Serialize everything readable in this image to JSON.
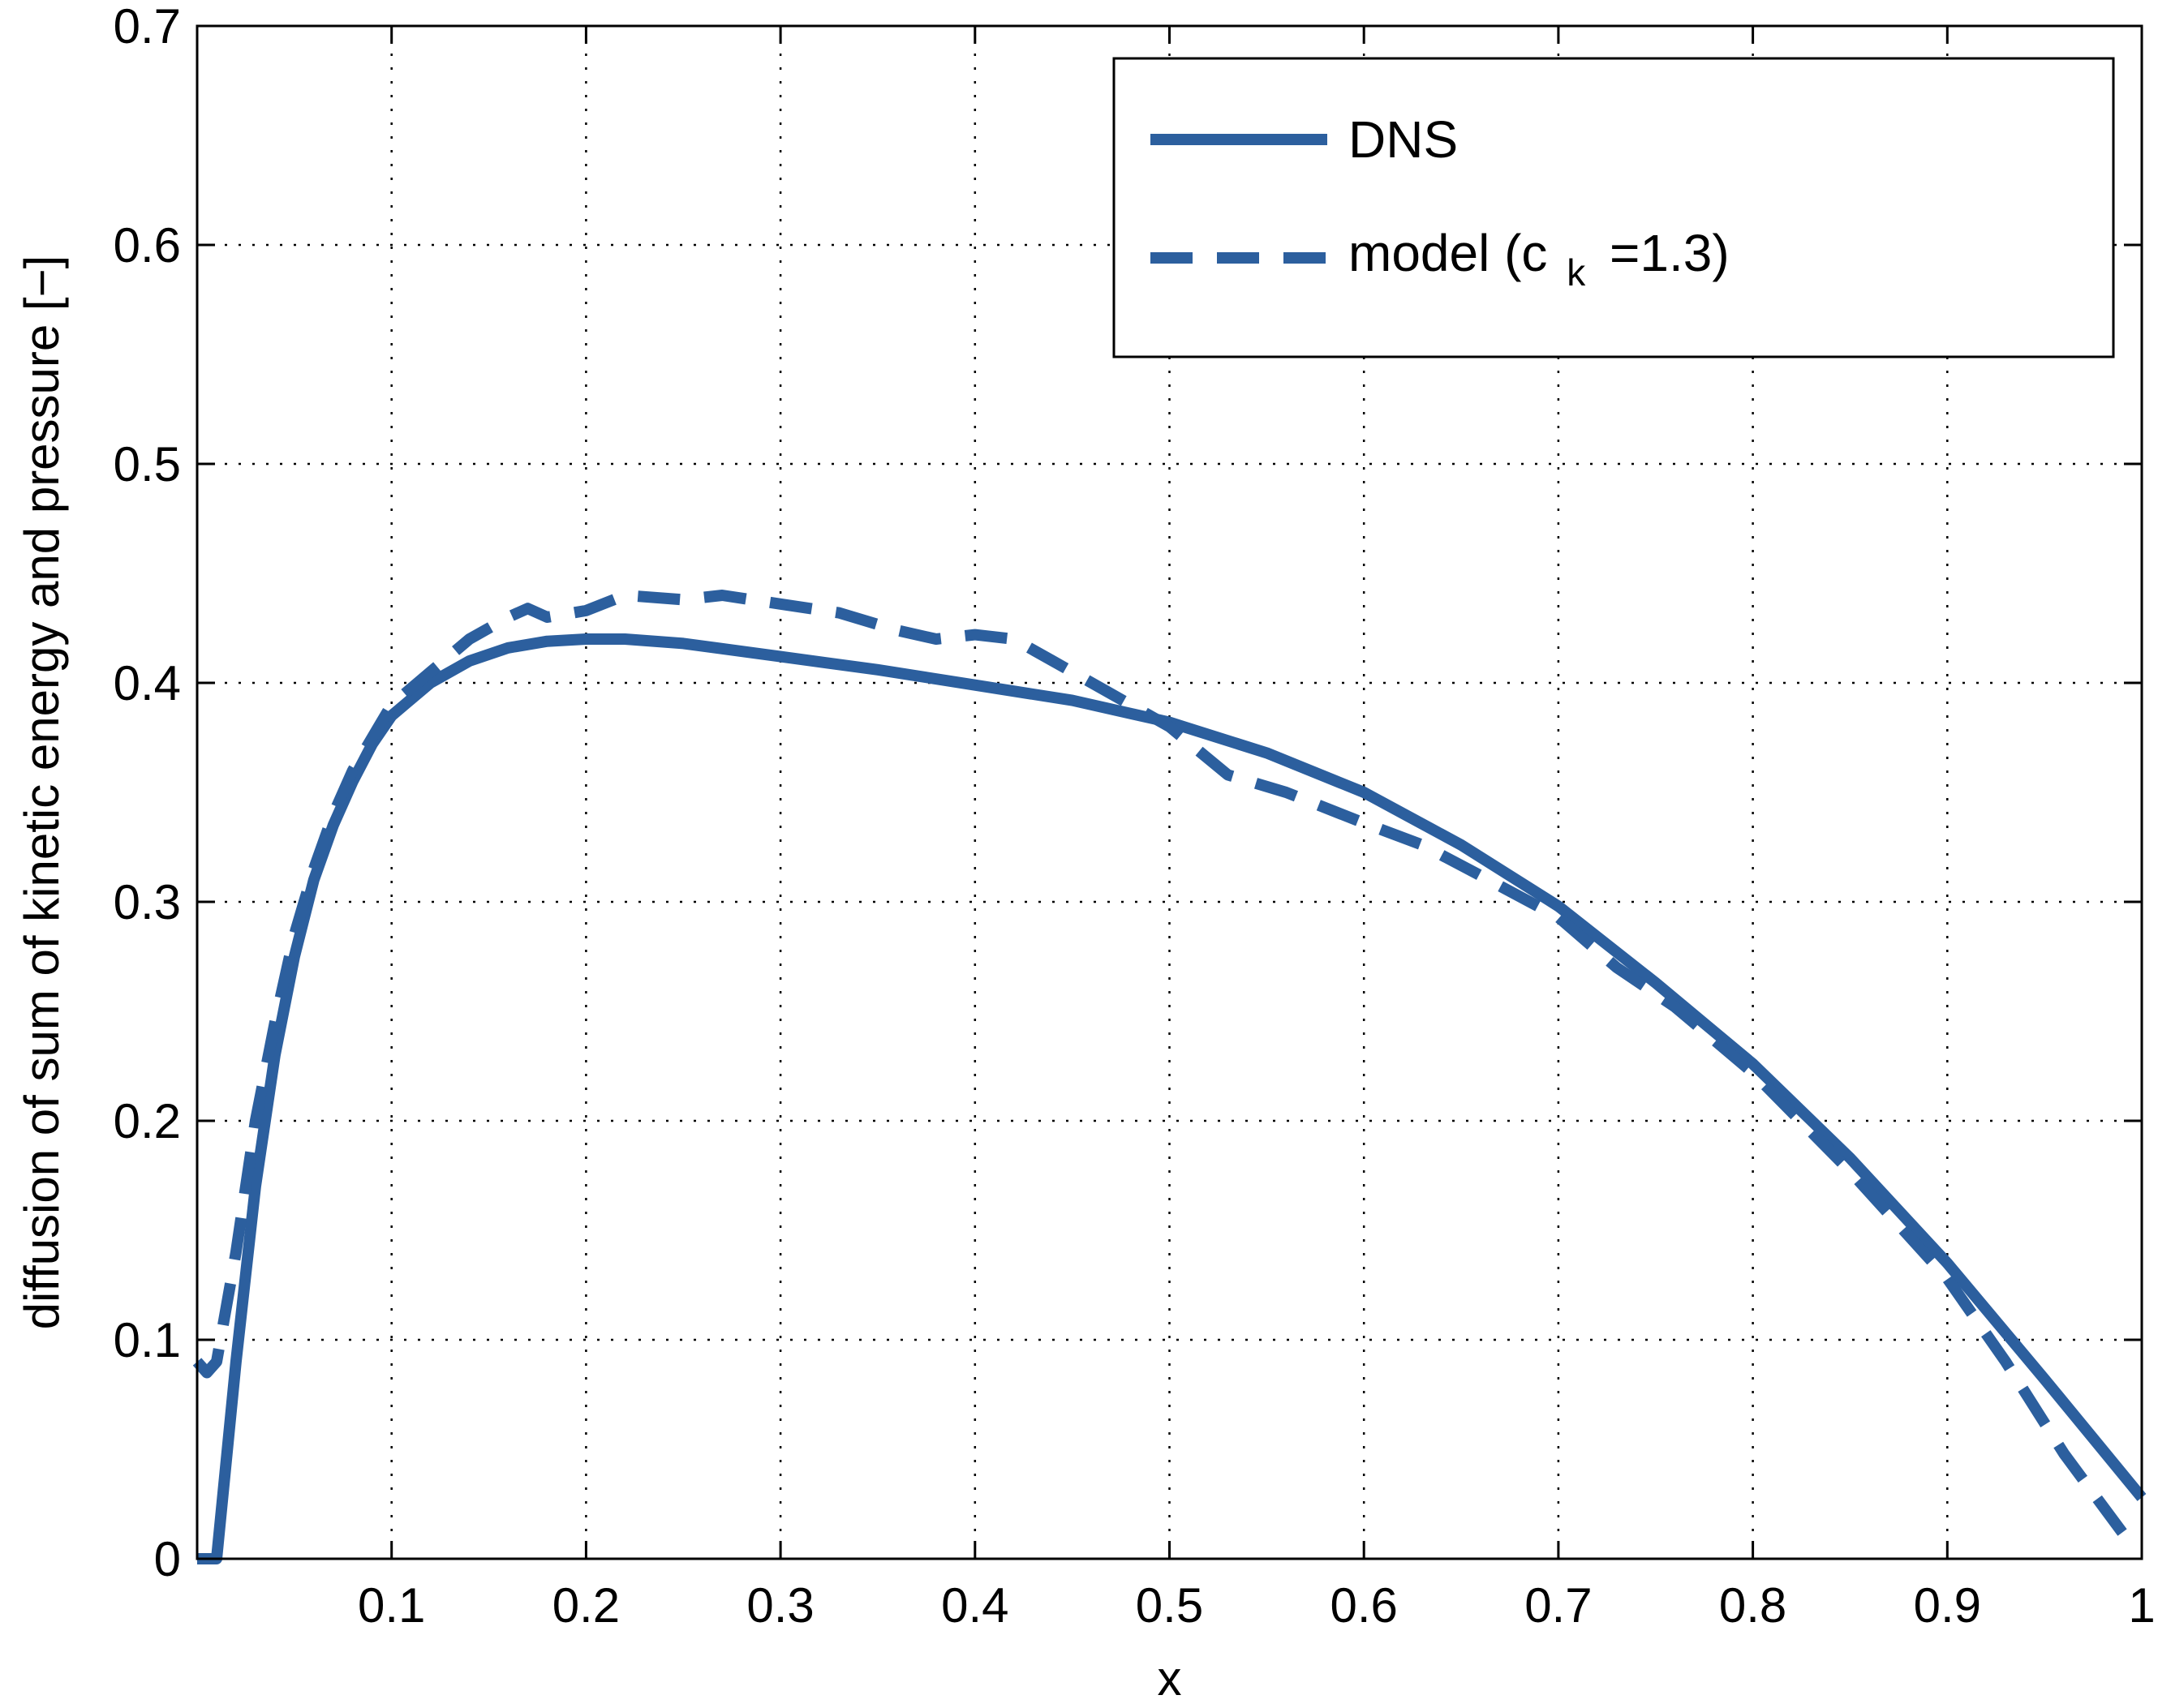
{
  "chart_data": {
    "type": "line",
    "xlabel": "x",
    "ylabel": "diffusion of sum of kinetic energy and pressure [−]",
    "xlim": [
      0.0,
      1.0
    ],
    "ylim": [
      0.0,
      0.7
    ],
    "x_ticks": [
      "0.1",
      "0.2",
      "0.3",
      "0.4",
      "0.5",
      "0.6",
      "0.7",
      "0.8",
      "0.9",
      "1"
    ],
    "y_ticks": [
      "0",
      "0.1",
      "0.2",
      "0.3",
      "0.4",
      "0.5",
      "0.6",
      "0.7"
    ],
    "grid": true,
    "legend_position": "top-right",
    "series": [
      {
        "name": "DNS",
        "style": "solid",
        "color": "#2c5f9e",
        "x": [
          0.0,
          0.01,
          0.02,
          0.03,
          0.04,
          0.05,
          0.06,
          0.07,
          0.08,
          0.09,
          0.1,
          0.12,
          0.14,
          0.16,
          0.18,
          0.2,
          0.22,
          0.25,
          0.3,
          0.35,
          0.4,
          0.45,
          0.5,
          0.55,
          0.6,
          0.65,
          0.7,
          0.75,
          0.8,
          0.85,
          0.9,
          0.95,
          1.0
        ],
        "y": [
          0.0,
          0.0,
          0.09,
          0.17,
          0.23,
          0.275,
          0.31,
          0.335,
          0.355,
          0.372,
          0.385,
          0.4,
          0.41,
          0.416,
          0.419,
          0.42,
          0.42,
          0.418,
          0.412,
          0.406,
          0.399,
          0.392,
          0.382,
          0.368,
          0.35,
          0.326,
          0.298,
          0.263,
          0.226,
          0.183,
          0.135,
          0.082,
          0.028
        ]
      },
      {
        "name": "model (c",
        "name_subscript": "k",
        "name_suffix": "=1.3)",
        "style": "dashed",
        "color": "#2c5f9e",
        "x": [
          0.0,
          0.005,
          0.01,
          0.02,
          0.03,
          0.04,
          0.05,
          0.06,
          0.07,
          0.08,
          0.09,
          0.1,
          0.12,
          0.14,
          0.16,
          0.17,
          0.18,
          0.2,
          0.22,
          0.25,
          0.27,
          0.3,
          0.33,
          0.36,
          0.38,
          0.4,
          0.42,
          0.44,
          0.47,
          0.5,
          0.53,
          0.56,
          0.6,
          0.63,
          0.66,
          0.7,
          0.73,
          0.76,
          0.8,
          0.85,
          0.9,
          0.93,
          0.96,
          0.99
        ],
        "y": [
          0.09,
          0.085,
          0.09,
          0.14,
          0.2,
          0.245,
          0.285,
          0.315,
          0.34,
          0.36,
          0.375,
          0.39,
          0.405,
          0.42,
          0.43,
          0.434,
          0.43,
          0.433,
          0.44,
          0.438,
          0.44,
          0.436,
          0.432,
          0.424,
          0.42,
          0.422,
          0.42,
          0.41,
          0.395,
          0.38,
          0.358,
          0.35,
          0.336,
          0.326,
          0.312,
          0.293,
          0.27,
          0.252,
          0.222,
          0.177,
          0.128,
          0.09,
          0.048,
          0.012
        ]
      }
    ]
  },
  "colors": {
    "series": "#2c5f9e",
    "axes": "#000000",
    "grid": "#000000"
  }
}
